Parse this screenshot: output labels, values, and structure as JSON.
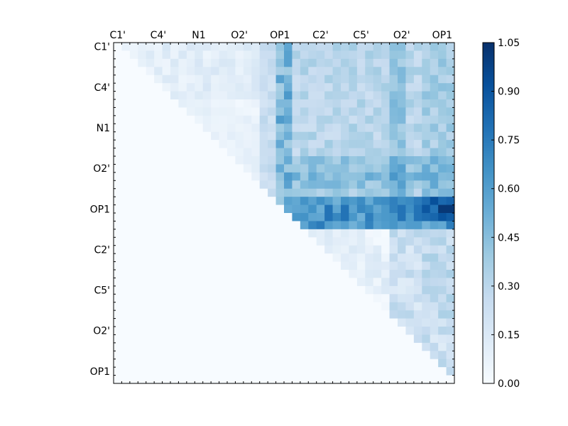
{
  "chart_data": [
    {
      "type": "heatmap",
      "title": "",
      "xlabel": "",
      "ylabel": "",
      "x_ticklabels": [
        "C1'",
        "C4'",
        "N1",
        "O2'",
        "OP1",
        "C2'",
        "C5'",
        "O2'",
        "OP1"
      ],
      "y_ticklabels": [
        "C1'",
        "C4'",
        "N1",
        "O2'",
        "OP1",
        "C2'",
        "C5'",
        "O2'",
        "OP1"
      ],
      "matrix_size": 42,
      "colormap": "Blues",
      "upper_triangle_only": true,
      "colorbar": {
        "range": [
          0.0,
          1.05
        ],
        "ticks": [
          "0.00",
          "0.15",
          "0.30",
          "0.45",
          "0.60",
          "0.75",
          "0.90",
          "1.05"
        ]
      },
      "approximate_block_values": {
        "rows_0_6_vs_cols_0_22": 0.1,
        "rows_0_22_vs_cols_22_42": 0.3,
        "rows_8_22_cols_20_22_peak": 0.55,
        "rows_20_22_vs_cols_22_42": 0.65,
        "row_20_col_38": 0.88,
        "row_20_col_40": 1.02,
        "rows_23_37_vs_cols_23_42": 0.2,
        "lower_triangle": 0.0
      }
    }
  ]
}
